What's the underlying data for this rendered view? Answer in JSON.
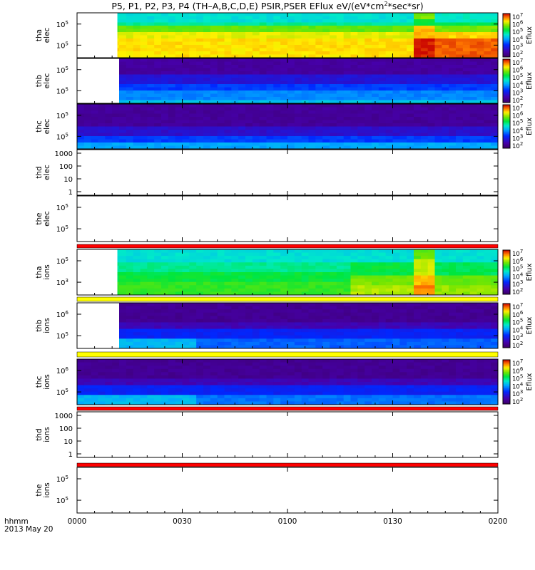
{
  "title": {
    "prefix": "P5, P1, P2, P3, P4 (TH–A,B,C,D,E) PSIR,PSER EFlux eV/(eV*cm",
    "mid": "*sec*sr)",
    "exp": "2"
  },
  "x_axis": {
    "row1": "hhmm",
    "row2": "2013 May 20",
    "ticks": [
      "0000",
      "0030",
      "0100",
      "0130",
      "0200"
    ],
    "range_minutes": [
      0,
      120
    ]
  },
  "colorbar": {
    "label": "Eflux",
    "ticks": [
      "10",
      "10",
      "10",
      "10",
      "10",
      "10"
    ],
    "tick_exponents": [
      "2",
      "3",
      "4",
      "5",
      "6",
      "7"
    ],
    "colormap": "rainbow (purple-blue-cyan-green-yellow-red)"
  },
  "chart_data": [
    {
      "type": "heatmap",
      "panel": "tha-elec",
      "ylabel": [
        "tha",
        "elec"
      ],
      "yticks": [
        "10",
        "10"
      ],
      "ytick_exp": [
        "5",
        "5"
      ],
      "ylog": true,
      "data_start_minute": 11.5,
      "dominant_log_eflux": 5.3,
      "colorbar": true
    },
    {
      "type": "heatmap",
      "panel": "thb-elec",
      "ylabel": [
        "thb",
        "elec"
      ],
      "yticks": [
        "10",
        "10"
      ],
      "ytick_exp": [
        "5",
        "5"
      ],
      "ylog": true,
      "data_start_minute": 12,
      "dominant_log_eflux": 2.4,
      "colorbar": true
    },
    {
      "type": "heatmap",
      "panel": "thc-elec",
      "ylabel": [
        "thc",
        "elec"
      ],
      "yticks": [
        "10",
        "10"
      ],
      "ytick_exp": [
        "5",
        "5"
      ],
      "ylog": true,
      "data_start_minute": 0,
      "dominant_log_eflux": 2.3,
      "colorbar": true
    },
    {
      "type": "heatmap",
      "panel": "thd-elec",
      "ylabel": [
        "thd",
        "elec"
      ],
      "yticks": [
        "1000",
        "100",
        "10",
        "1"
      ],
      "ylog": true,
      "empty": true
    },
    {
      "type": "heatmap",
      "panel": "the-elec",
      "ylabel": [
        "the",
        "elec"
      ],
      "yticks": [
        "10",
        "10"
      ],
      "ytick_exp": [
        "5",
        "5"
      ],
      "ylog": true,
      "empty": true
    },
    {
      "type": "heatmap",
      "panel": "tha-ions",
      "ylabel": [
        "tha",
        "ions"
      ],
      "yticks": [
        "10",
        "10"
      ],
      "ytick_exp": [
        "5",
        "3"
      ],
      "ylog": true,
      "data_start_minute": 11.5,
      "dominant_log_eflux": 4.8,
      "colorbar": true
    },
    {
      "type": "heatmap",
      "panel": "thb-ions",
      "ylabel": [
        "thb",
        "ions"
      ],
      "yticks": [
        "10",
        "10"
      ],
      "ytick_exp": [
        "6",
        "5"
      ],
      "ylog": true,
      "data_start_minute": 12,
      "dominant_log_eflux": 2.4,
      "colorbar": true
    },
    {
      "type": "heatmap",
      "panel": "thc-ions",
      "ylabel": [
        "thc",
        "ions"
      ],
      "yticks": [
        "10",
        "10"
      ],
      "ytick_exp": [
        "6",
        "5"
      ],
      "ylog": true,
      "data_start_minute": 0,
      "dominant_log_eflux": 2.3,
      "colorbar": true
    },
    {
      "type": "heatmap",
      "panel": "thd-ions",
      "ylabel": [
        "thd",
        "ions"
      ],
      "yticks": [
        "1000",
        "100",
        "10",
        "1"
      ],
      "ylog": true,
      "empty": true
    },
    {
      "type": "heatmap",
      "panel": "the-ions",
      "ylabel": [
        "the",
        "ions"
      ],
      "yticks": [
        "10",
        "10"
      ],
      "ytick_exp": [
        "5",
        "5"
      ],
      "ylog": true,
      "empty": true
    }
  ],
  "status_bars": [
    {
      "name": "red-bar-1",
      "color": "#ff0000"
    },
    {
      "name": "yellow-bar-1",
      "color": "#ffff00"
    },
    {
      "name": "yellow-bar-2",
      "color": "#ffff00"
    },
    {
      "name": "red-bar-2",
      "color": "#ff0000"
    },
    {
      "name": "red-bar-3",
      "color": "#ff0000"
    }
  ]
}
